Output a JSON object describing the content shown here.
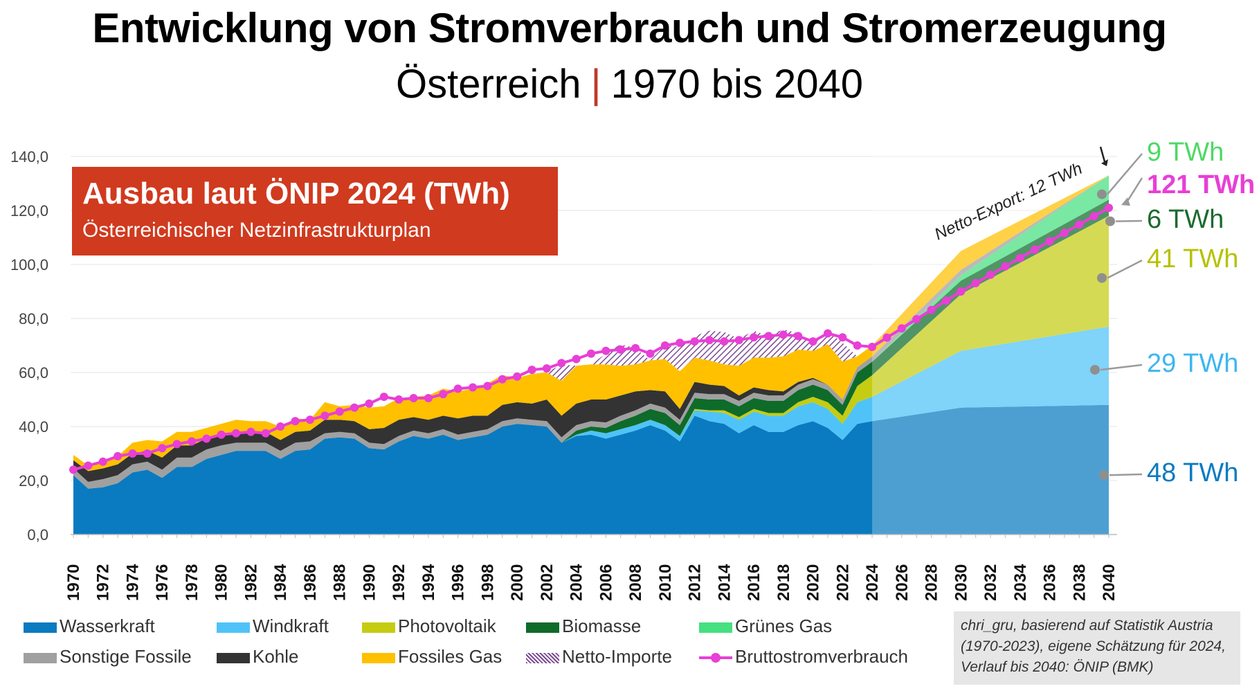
{
  "title": "Entwicklung von Stromverbrauch und Stromerzeugung",
  "subtitle_left": "Österreich",
  "subtitle_sep": "|",
  "subtitle_right": "1970 bis 2040",
  "badge": {
    "title": "Ausbau laut ÖNIP 2024 (TWh)",
    "subtitle": "Österreichischer Netzinfrastrukturplan"
  },
  "annotation_export": "Netto-Export: 12 TWh",
  "source_lines": [
    "chri_gru, basierend auf Statistik Austria",
    "(1970-2023), eigene Schätzung für 2024,",
    "Verlauf bis 2040: ÖNIP (BMK)"
  ],
  "end_labels": [
    {
      "text": "9 TWh",
      "color": "#4cd964",
      "value": 126
    },
    {
      "text": "121 TWh",
      "color": "#e83fd6",
      "value": 121
    },
    {
      "text": "6 TWh",
      "color": "#1a6b2e",
      "value": 116
    },
    {
      "text": "41 TWh",
      "color": "#b5c200",
      "value": 95
    },
    {
      "text": "29 TWh",
      "color": "#3cb6f0",
      "value": 61
    },
    {
      "text": "48 TWh",
      "color": "#0a7bc0",
      "value": 22
    }
  ],
  "chart_data": {
    "type": "area",
    "stacked": true,
    "x": [
      1970,
      1971,
      1972,
      1973,
      1974,
      1975,
      1976,
      1977,
      1978,
      1979,
      1980,
      1981,
      1982,
      1983,
      1984,
      1985,
      1986,
      1987,
      1988,
      1989,
      1990,
      1991,
      1992,
      1993,
      1994,
      1995,
      1996,
      1997,
      1998,
      1999,
      2000,
      2001,
      2002,
      2003,
      2004,
      2005,
      2006,
      2007,
      2008,
      2009,
      2010,
      2011,
      2012,
      2013,
      2014,
      2015,
      2016,
      2017,
      2018,
      2019,
      2020,
      2021,
      2022,
      2023,
      2024,
      2030,
      2040
    ],
    "x_ticks": [
      "1970",
      "1972",
      "1974",
      "1976",
      "1978",
      "1980",
      "1982",
      "1984",
      "1986",
      "1988",
      "1990",
      "1992",
      "1994",
      "1996",
      "1998",
      "2000",
      "2002",
      "2004",
      "2006",
      "2008",
      "2010",
      "2012",
      "2014",
      "2016",
      "2018",
      "2020",
      "2022",
      "2024",
      "2026",
      "2028",
      "2030",
      "2032",
      "2034",
      "2036",
      "2038",
      "2040"
    ],
    "ylim": [
      0,
      140
    ],
    "y_ticks": [
      "0,0",
      "20,0",
      "40,0",
      "60,0",
      "80,0",
      "100,0",
      "120,0",
      "140,0"
    ],
    "series": [
      {
        "name": "Wasserkraft",
        "color": "#0a7bc0",
        "values": [
          22,
          17,
          17.5,
          19,
          23,
          24,
          21,
          25,
          25,
          28,
          29.5,
          31,
          31,
          31,
          28,
          31,
          31.5,
          35.5,
          36,
          35.5,
          32,
          31.5,
          34.5,
          36.5,
          35.5,
          37,
          35,
          36,
          37,
          40,
          41,
          40.5,
          40,
          34,
          36.5,
          37,
          35.5,
          37,
          38.5,
          40.5,
          38.5,
          34.5,
          44,
          42,
          41,
          37.5,
          40.5,
          38,
          38,
          40.5,
          42,
          39.5,
          35,
          41,
          42,
          47,
          48
        ]
      },
      {
        "name": "Windkraft",
        "color": "#4fc3f7",
        "values": [
          0,
          0,
          0,
          0,
          0,
          0,
          0,
          0,
          0,
          0,
          0,
          0,
          0,
          0,
          0,
          0,
          0,
          0,
          0,
          0,
          0,
          0,
          0,
          0,
          0,
          0,
          0,
          0,
          0,
          0,
          0,
          0,
          0,
          0,
          0.5,
          1.5,
          2,
          2,
          2,
          2,
          2,
          2,
          2,
          3.5,
          4,
          5,
          5,
          6,
          6,
          7,
          7,
          7,
          6,
          8,
          9,
          21,
          29
        ]
      },
      {
        "name": "Photovoltaik",
        "color": "#c5cc12",
        "values": [
          0,
          0,
          0,
          0,
          0,
          0,
          0,
          0,
          0,
          0,
          0,
          0,
          0,
          0,
          0,
          0,
          0,
          0,
          0,
          0,
          0,
          0,
          0,
          0,
          0,
          0,
          0,
          0,
          0,
          0,
          0,
          0,
          0,
          0,
          0,
          0,
          0,
          0,
          0,
          0,
          0,
          0,
          0.5,
          0.5,
          1,
          1,
          1,
          1,
          1,
          1.5,
          2,
          2.5,
          3,
          6,
          8,
          21,
          41
        ]
      },
      {
        "name": "Biomasse",
        "color": "#0f6b2a",
        "values": [
          0,
          0,
          0,
          0,
          0,
          0,
          0,
          0,
          0,
          0,
          0,
          0,
          0,
          0,
          0,
          0,
          0,
          0,
          0,
          0,
          0,
          0,
          0,
          0,
          0,
          0,
          0,
          0,
          0,
          0,
          0,
          0,
          0,
          0,
          1.5,
          1.5,
          2,
          3,
          3.5,
          4,
          4.5,
          4,
          4,
          4,
          4,
          4,
          4,
          4.5,
          4.5,
          4.5,
          4.5,
          4.5,
          4,
          5,
          5,
          5,
          6
        ]
      },
      {
        "name": "Grünes Gas",
        "color": "#45e07f",
        "values": [
          0,
          0,
          0,
          0,
          0,
          0,
          0,
          0,
          0,
          0,
          0,
          0,
          0,
          0,
          0,
          0,
          0,
          0,
          0,
          0,
          0,
          0,
          0,
          0,
          0,
          0,
          0,
          0,
          0,
          0,
          0,
          0,
          0,
          0,
          0,
          0,
          0,
          0,
          0,
          0,
          0,
          0,
          0,
          0,
          0,
          0,
          0,
          0,
          0,
          0,
          0,
          0,
          0,
          0,
          0,
          2,
          9
        ]
      },
      {
        "name": "Sonstige Fossile",
        "color": "#a0a0a0",
        "values": [
          2.5,
          2.5,
          3,
          3,
          3,
          3,
          3,
          3.5,
          3.5,
          3.5,
          3.5,
          3,
          3,
          3,
          3,
          3,
          3,
          2,
          2,
          2,
          2,
          2,
          2,
          2,
          2,
          2,
          2,
          2,
          2,
          2,
          2,
          2,
          2,
          2,
          2,
          2,
          2,
          2,
          2,
          2,
          2,
          2,
          2,
          2,
          2,
          2,
          2,
          2,
          2,
          2,
          2,
          2,
          2,
          2,
          2,
          2,
          0
        ]
      },
      {
        "name": "Kohle",
        "color": "#333333",
        "values": [
          3,
          4,
          4,
          4,
          4,
          4,
          4.5,
          4.5,
          4.5,
          4,
          4,
          4,
          4,
          4,
          4,
          4,
          4,
          5,
          4.5,
          4.5,
          5,
          6,
          6,
          5,
          5,
          5,
          6,
          6,
          5,
          6,
          6,
          6,
          8,
          8,
          8,
          8,
          8.5,
          7.5,
          7,
          5,
          6,
          4,
          4,
          3.5,
          3,
          2,
          2,
          2,
          1.5,
          1,
          0.5,
          0,
          0,
          0,
          0,
          0,
          0
        ]
      },
      {
        "name": "Fossiles Gas",
        "color": "#ffc000",
        "values": [
          2,
          2,
          2,
          3,
          4,
          4,
          6,
          5,
          5,
          4,
          4,
          4.5,
          4,
          4,
          5,
          5,
          4,
          6.5,
          5,
          6,
          8,
          8,
          8,
          7.5,
          9,
          10,
          10,
          10,
          12,
          11,
          9,
          11,
          10,
          13,
          14,
          13,
          13,
          11,
          10,
          11,
          12,
          14,
          9,
          9,
          8,
          11,
          11,
          12,
          13,
          12,
          10,
          15,
          14,
          4,
          4,
          7,
          0
        ]
      },
      {
        "name": "Netto-Importe",
        "color": "#7b4a92",
        "pattern": true,
        "values": [
          0,
          0,
          0,
          0,
          0,
          0,
          0,
          0,
          0,
          0,
          0,
          0,
          0,
          0,
          0,
          0,
          0,
          0,
          0,
          0,
          0,
          0,
          0,
          0,
          0,
          0,
          0,
          0,
          0,
          0,
          0,
          0,
          0,
          6,
          0,
          0,
          4,
          8,
          6,
          0,
          5,
          9,
          8,
          11,
          12,
          10,
          10,
          8,
          10,
          6,
          3,
          5,
          7,
          0,
          0,
          0,
          0
        ]
      }
    ],
    "line": {
      "name": "Bruttostromverbrauch",
      "color": "#e83fd6",
      "values": [
        24,
        25.5,
        27,
        29,
        30,
        30,
        32,
        33.5,
        34.5,
        35.5,
        37,
        37.5,
        38,
        37.5,
        40,
        42,
        42.5,
        44,
        45.5,
        47,
        48.5,
        51,
        50,
        50.5,
        50.5,
        52,
        54,
        54.5,
        55,
        57.5,
        58.5,
        61,
        61.5,
        63.5,
        65,
        67,
        68,
        68.5,
        69,
        67,
        70,
        71,
        71.5,
        72,
        71.5,
        72,
        73,
        73.5,
        74,
        73.5,
        71.5,
        74.5,
        73,
        70,
        69.5,
        90,
        121
      ]
    }
  },
  "legend": [
    {
      "name": "Wasserkraft",
      "color": "#0a7bc0"
    },
    {
      "name": "Windkraft",
      "color": "#4fc3f7"
    },
    {
      "name": "Photovoltaik",
      "color": "#c5cc12"
    },
    {
      "name": "Biomasse",
      "color": "#0f6b2a"
    },
    {
      "name": "Grünes Gas",
      "color": "#45e07f"
    },
    {
      "name": "Sonstige Fossile",
      "color": "#a0a0a0"
    },
    {
      "name": "Kohle",
      "color": "#333333"
    },
    {
      "name": "Fossiles Gas",
      "color": "#ffc000"
    },
    {
      "name": "Netto-Importe",
      "color": "#7b4a92"
    },
    {
      "name": "Bruttostromverbrauch",
      "color": "#e83fd6"
    }
  ]
}
